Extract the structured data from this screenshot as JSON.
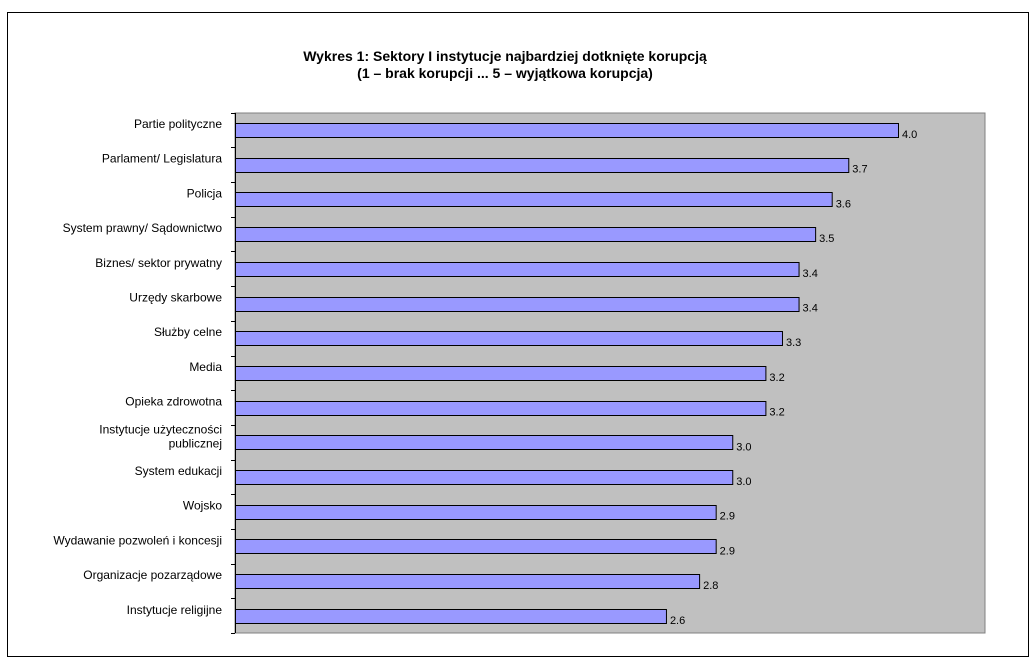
{
  "chart_data": {
    "type": "bar",
    "orientation": "horizontal",
    "title_line1": "Wykres 1: Sektory I instytucje najbardziej dotknięte korupcją",
    "title_line2": "(1 – brak korupcji ... 5 – wyjątkowa korupcja)",
    "categories": [
      [
        "Partie polityczne"
      ],
      [
        "Parlament/ Legislatura"
      ],
      [
        "Policja"
      ],
      [
        "System prawny/ Sądownictwo"
      ],
      [
        "Biznes/ sektor prywatny"
      ],
      [
        "Urzędy skarbowe"
      ],
      [
        "Służby celne"
      ],
      [
        "Media"
      ],
      [
        "Opieka zdrowotna"
      ],
      [
        "Instytucje użyteczności",
        "publicznej"
      ],
      [
        "System edukacji"
      ],
      [
        "Wojsko"
      ],
      [
        "Wydawanie pozwoleń i koncesji"
      ],
      [
        "Organizacje pozarządowe"
      ],
      [
        "Instytucje religijne"
      ]
    ],
    "values": [
      4.0,
      3.7,
      3.6,
      3.5,
      3.4,
      3.4,
      3.3,
      3.2,
      3.2,
      3.0,
      3.0,
      2.9,
      2.9,
      2.8,
      2.6
    ],
    "value_labels": [
      "4.0",
      "3.7",
      "3.6",
      "3.5",
      "3.4",
      "3.4",
      "3.3",
      "3.2",
      "3.2",
      "3.0",
      "3.0",
      "2.9",
      "2.9",
      "2.8",
      "2.6"
    ],
    "xlim": [
      0,
      5
    ],
    "grid": false,
    "legend": "none",
    "colors": {
      "bar_fill": "#9999ff",
      "bar_stroke": "#000000",
      "plot_background": "#c0c0c0"
    }
  }
}
